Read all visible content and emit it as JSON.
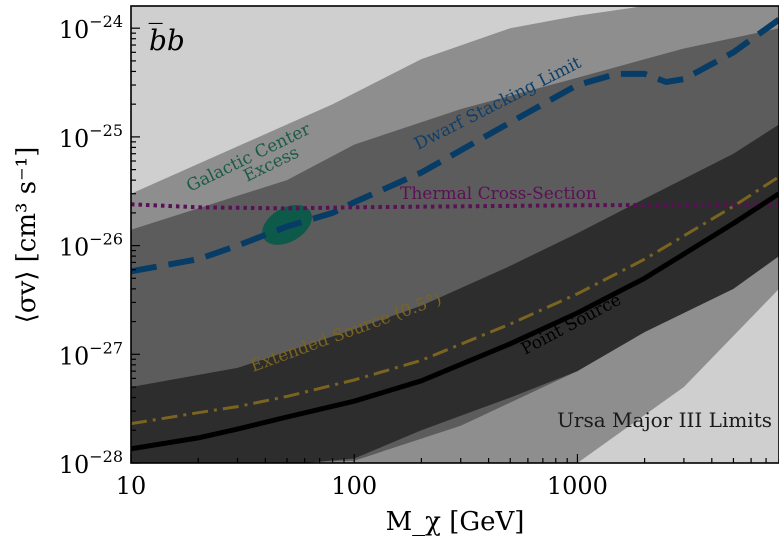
{
  "chart_data": {
    "type": "line",
    "title": "",
    "panel_label": "b̅b",
    "xlabel": "M_χ [GeV]",
    "ylabel": "⟨σv⟩ [cm³ s⁻¹]",
    "x_scale": "log",
    "y_scale": "log",
    "xlim": [
      10,
      8000
    ],
    "ylim": [
      1e-28,
      1.6e-24
    ],
    "x_ticks": [
      {
        "value": 10,
        "label": "10"
      },
      {
        "value": 100,
        "label": "100"
      },
      {
        "value": 1000,
        "label": "1000"
      }
    ],
    "y_ticks": [
      {
        "value": 1e-28,
        "base": "10",
        "exp": "−28"
      },
      {
        "value": 1e-27,
        "base": "10",
        "exp": "−27"
      },
      {
        "value": 1e-26,
        "base": "10",
        "exp": "−26"
      },
      {
        "value": 1e-25,
        "base": "10",
        "exp": "−25"
      },
      {
        "value": 1e-24,
        "base": "10",
        "exp": "−24"
      }
    ],
    "grid": false,
    "legend": "none",
    "bands": [
      {
        "name": "outer",
        "color": "#cfcfcf",
        "upper": {
          "x": [
            10,
            8000
          ],
          "y": [
            1.6e-24,
            1.6e-24
          ]
        },
        "lower": {
          "x": [
            10,
            8000
          ],
          "y": [
            1e-28,
            1e-28
          ]
        }
      },
      {
        "name": "2sigma",
        "color": "#8e8e8e",
        "upper": {
          "x": [
            10,
            80,
            200,
            500,
            1000,
            2000,
            5000,
            8000
          ],
          "y": [
            3e-26,
            2e-25,
            5.2e-25,
            1e-24,
            1.3e-24,
            1.6e-24,
            1.6e-24,
            1.6e-24
          ]
        },
        "lower": {
          "x": [
            10,
            100,
            300,
            1000,
            3000,
            8000
          ],
          "y": [
            1e-28,
            1e-28,
            1e-28,
            1e-28,
            5e-28,
            4e-27
          ]
        }
      },
      {
        "name": "1sigma",
        "color": "#5c5c5c",
        "upper": {
          "x": [
            10,
            50,
            100,
            300,
            1000,
            3000,
            8000
          ],
          "y": [
            1.4e-26,
            4e-26,
            8.5e-26,
            1.8e-25,
            3.5e-25,
            6.5e-25,
            1e-24
          ]
        },
        "lower": {
          "x": [
            10,
            50,
            100,
            300,
            1000,
            3000,
            8000
          ],
          "y": [
            1e-28,
            1e-28,
            1.05e-28,
            2.2e-28,
            7e-28,
            3.2e-27,
            1.6e-26
          ]
        }
      },
      {
        "name": "core",
        "color": "#2d2d2d",
        "upper": {
          "x": [
            10,
            30,
            60,
            100,
            200,
            500,
            1000,
            2000,
            5000,
            8000
          ],
          "y": [
            5e-28,
            7.5e-28,
            1.2e-27,
            1.7e-27,
            2.8e-27,
            6.5e-27,
            1.3e-26,
            2.7e-26,
            7e-26,
            1.3e-25
          ]
        },
        "lower": {
          "x": [
            10,
            30,
            60,
            100,
            200,
            500,
            1000,
            2000,
            5000,
            8000
          ],
          "y": [
            1e-28,
            1e-28,
            1e-28,
            1.1e-28,
            2e-28,
            4e-28,
            7e-28,
            1.6e-27,
            4e-27,
            8e-27
          ]
        }
      }
    ],
    "series": [
      {
        "name": "Dwarf Stacking Limit",
        "style": "dashed",
        "color": "#063c66",
        "x": [
          10,
          20,
          30,
          50,
          80,
          100,
          200,
          400,
          700,
          1000,
          1500,
          2000,
          2500,
          3000,
          5000,
          8000
        ],
        "y": [
          5.8e-27,
          7.5e-27,
          1e-26,
          1.5e-26,
          2e-26,
          2.5e-26,
          4.7e-26,
          1.05e-25,
          2e-25,
          3e-25,
          3.8e-25,
          3.8e-25,
          3.2e-25,
          3.4e-25,
          6e-25,
          1.2e-24
        ]
      },
      {
        "name": "Thermal Cross-Section",
        "style": "dotted",
        "color": "#5b0f55",
        "x": [
          10,
          20,
          50,
          100,
          1000,
          8000
        ],
        "y": [
          2.4e-26,
          2.25e-26,
          2.2e-26,
          2.25e-26,
          2.35e-26,
          2.4e-26
        ]
      },
      {
        "name": "Extended Source (0.5°)",
        "style": "dashdot",
        "color": "#7a6420",
        "x": [
          10,
          20,
          30,
          50,
          100,
          200,
          500,
          1000,
          2000,
          5000,
          8000
        ],
        "y": [
          2.3e-28,
          2.9e-28,
          3.3e-28,
          4.1e-28,
          5.8e-28,
          8.8e-28,
          1.9e-27,
          3.6e-27,
          7.5e-27,
          2.3e-26,
          4.3e-26
        ]
      },
      {
        "name": "Point Source",
        "style": "solid",
        "color": "#000000",
        "x": [
          10,
          20,
          30,
          50,
          100,
          200,
          500,
          1000,
          2000,
          5000,
          8000
        ],
        "y": [
          1.35e-28,
          1.7e-28,
          2.05e-28,
          2.65e-28,
          3.7e-28,
          5.7e-28,
          1.25e-27,
          2.4e-27,
          5e-27,
          1.6e-26,
          3e-26
        ]
      }
    ],
    "regions": [
      {
        "name": "Galactic Center Excess",
        "color": "#0e5a4a",
        "center_x": 50,
        "center_y": 1.55e-26
      }
    ],
    "annotations": {
      "gce": [
        "Galactic Center",
        "Excess"
      ],
      "dwarf": "Dwarf Stacking Limit",
      "thermal": "Thermal Cross-Section",
      "extended": "Extended Source (0.5°)",
      "point": "Point Source",
      "ursa": "Ursa Major III Limits"
    },
    "colors": {
      "gce_text": "#1a5c44",
      "dwarf_text": "#0d3f6a",
      "thermal_text": "#5b0f55",
      "extended_text": "#7a6420",
      "point_text": "#000000",
      "ursa_text": "#1a1a1a"
    }
  }
}
